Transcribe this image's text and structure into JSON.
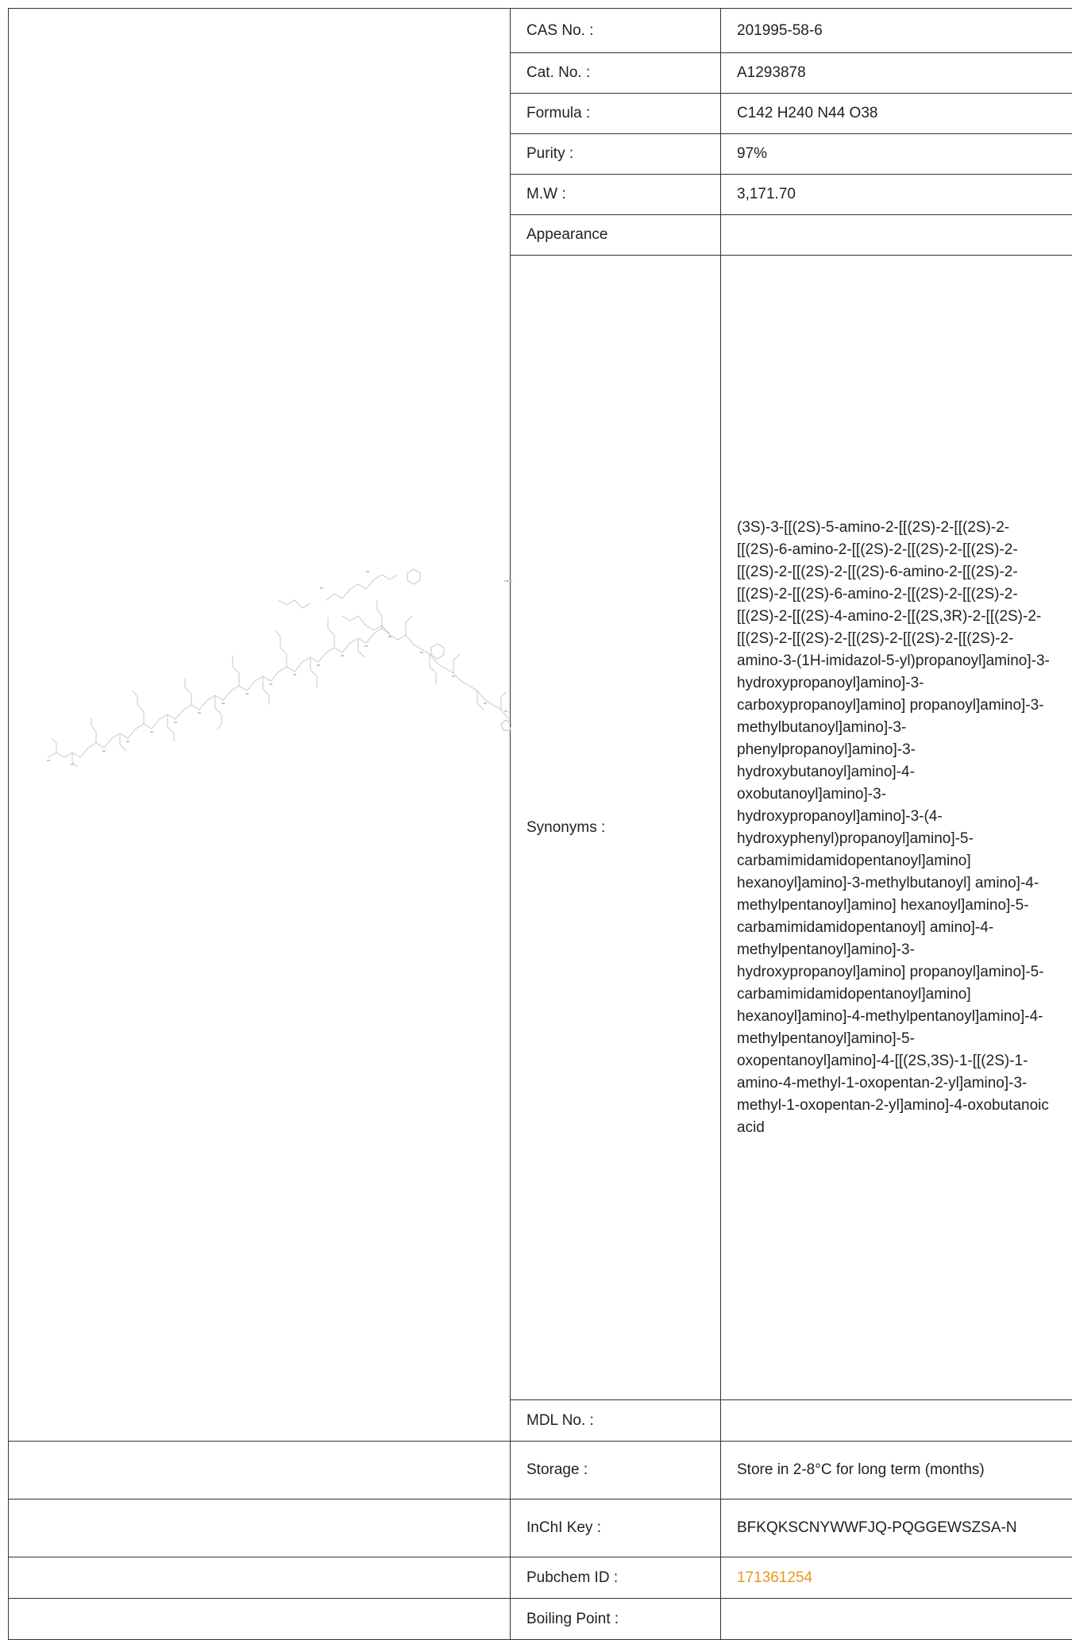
{
  "rows": {
    "cas": {
      "label": "CAS No. :",
      "value": "201995-58-6"
    },
    "cat": {
      "label": "Cat. No. :",
      "value": "A1293878"
    },
    "formula": {
      "label": "Formula :",
      "value": "C142 H240 N44 O38"
    },
    "purity": {
      "label": "Purity :",
      "value": "97%"
    },
    "mw": {
      "label": "M.W :",
      "value": "3,171.70"
    },
    "appearance": {
      "label": "Appearance",
      "value": ""
    },
    "synonyms": {
      "label": "Synonyms :",
      "value": "(3S)-3-[[(2S)-5-amino-2-[[(2S)-2-[[(2S)-2-[[(2S)-6-amino-2-[[(2S)-2-[[(2S)-2-[[(2S)-2-[[(2S)-2-[[(2S)-2-[[(2S)-6-amino-2-[[(2S)-2-[[(2S)-2-[[(2S)-6-amino-2-[[(2S)-2-[[(2S)-2-[[(2S)-2-[[(2S)-4-amino-2-[[(2S,3R)-2-[[(2S)-2-[[(2S)-2-[[(2S)-2-[[(2S)-2-[[(2S)-2-[[(2S)-2-amino-3-(1H-imidazol-5-yl)propanoyl]amino]-3-hydroxypropanoyl]amino]-3-carboxypropanoyl]amino] propanoyl]amino]-3-methylbutanoyl]amino]-3-phenylpropanoyl]amino]-3-hydroxybutanoyl]amino]-4-oxobutanoyl]amino]-3-hydroxypropanoyl]amino]-3-(4-hydroxyphenyl)propanoyl]amino]-5-carbamimidamidopentanoyl]amino] hexanoyl]amino]-3-methylbutanoyl] amino]-4-methylpentanoyl]amino] hexanoyl]amino]-5-carbamimidamidopentanoyl] amino]-4-methylpentanoyl]amino]-3-hydroxypropanoyl]amino] propanoyl]amino]-5-carbamimidamidopentanoyl]amino] hexanoyl]amino]-4-methylpentanoyl]amino]-4-methylpentanoyl]amino]-5-oxopentanoyl]amino]-4-[[(2S,3S)-1-[[(2S)-1-amino-4-methyl-1-oxopentan-2-yl]amino]-3-methyl-1-oxopentan-2-yl]amino]-4-oxobutanoic acid"
    },
    "mdl": {
      "label": "MDL No. :",
      "value": ""
    },
    "storage": {
      "label": "Storage :",
      "value": "Store in 2-8°C for long term (months)"
    },
    "inchi": {
      "label": "InChI Key :",
      "value": "BFKQKSCNYWWFJQ-PQGGEWSZSA-N"
    },
    "pubchem": {
      "label": "Pubchem ID :",
      "value": "171361254",
      "link_color": "#e8961e"
    },
    "boiling": {
      "label": "Boiling Point :",
      "value": ""
    }
  }
}
